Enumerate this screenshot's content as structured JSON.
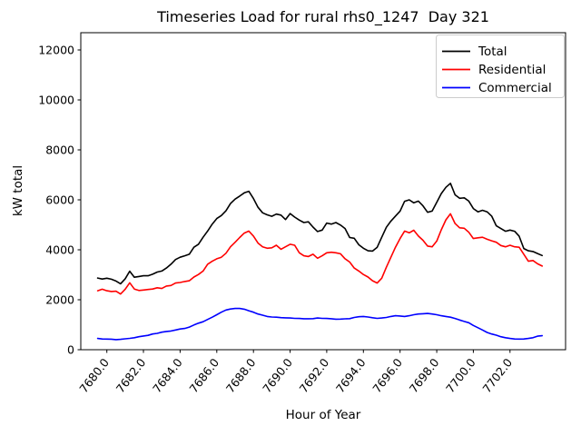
{
  "chart_data": {
    "type": "line",
    "title": "Timeseries Load for rural rhs0_1247  Day 321",
    "xlabel": "Hour of Year",
    "ylabel": "kW total",
    "xlim": [
      7678.58,
      7705.03
    ],
    "ylim": [
      0,
      12690
    ],
    "xticks": [
      7680,
      7682,
      7684,
      7686,
      7688,
      7690,
      7692,
      7694,
      7696,
      7698,
      7700,
      7702
    ],
    "xtick_labels": [
      "7680.0",
      "7682.0",
      "7684.0",
      "7686.0",
      "7688.0",
      "7690.0",
      "7692.0",
      "7694.0",
      "7696.0",
      "7698.0",
      "7700.0",
      "7702.0"
    ],
    "yticks": [
      0,
      2000,
      4000,
      6000,
      8000,
      10000,
      12000
    ],
    "ytick_labels": [
      "0",
      "2000",
      "4000",
      "6000",
      "8000",
      "10000",
      "12000"
    ],
    "grid": false,
    "legend_position": "upper right",
    "x": [
      7679.5,
      7679.75,
      7680.0,
      7680.25,
      7680.5,
      7680.75,
      7681.0,
      7681.25,
      7681.5,
      7681.75,
      7682.0,
      7682.25,
      7682.5,
      7682.75,
      7683.0,
      7683.25,
      7683.5,
      7683.75,
      7684.0,
      7684.25,
      7684.5,
      7684.75,
      7685.0,
      7685.25,
      7685.5,
      7685.75,
      7686.0,
      7686.25,
      7686.5,
      7686.75,
      7687.0,
      7687.25,
      7687.5,
      7687.75,
      7688.0,
      7688.25,
      7688.5,
      7688.75,
      7689.0,
      7689.25,
      7689.5,
      7689.75,
      7690.0,
      7690.25,
      7690.5,
      7690.75,
      7691.0,
      7691.25,
      7691.5,
      7691.75,
      7692.0,
      7692.25,
      7692.5,
      7692.75,
      7693.0,
      7693.25,
      7693.5,
      7693.75,
      7694.0,
      7694.25,
      7694.5,
      7694.75,
      7695.0,
      7695.25,
      7695.5,
      7695.75,
      7696.0,
      7696.25,
      7696.5,
      7696.75,
      7697.0,
      7697.25,
      7697.5,
      7697.75,
      7698.0,
      7698.25,
      7698.5,
      7698.75,
      7699.0,
      7699.25,
      7699.5,
      7699.75,
      7700.0,
      7700.25,
      7700.5,
      7700.75,
      7701.0,
      7701.25,
      7701.5,
      7701.75,
      7702.0,
      7702.25,
      7702.5,
      7702.75,
      7703.0,
      7703.25,
      7703.5,
      7703.75
    ],
    "series": [
      {
        "name": "Total",
        "color": "#000000",
        "values": [
          2870,
          2830,
          2860,
          2820,
          2750,
          2640,
          2840,
          3140,
          2900,
          2930,
          2960,
          2960,
          3020,
          3110,
          3150,
          3270,
          3420,
          3610,
          3700,
          3760,
          3820,
          4100,
          4220,
          4500,
          4750,
          5030,
          5250,
          5370,
          5560,
          5850,
          6030,
          6150,
          6280,
          6340,
          6050,
          5700,
          5480,
          5400,
          5340,
          5430,
          5390,
          5210,
          5450,
          5310,
          5190,
          5090,
          5120,
          4910,
          4730,
          4790,
          5070,
          5030,
          5090,
          4990,
          4850,
          4490,
          4460,
          4200,
          4060,
          3960,
          3950,
          4100,
          4500,
          4900,
          5150,
          5350,
          5550,
          5940,
          6000,
          5880,
          5950,
          5760,
          5500,
          5550,
          5900,
          6250,
          6500,
          6660,
          6200,
          6060,
          6080,
          5950,
          5650,
          5520,
          5580,
          5520,
          5350,
          4960,
          4850,
          4740,
          4790,
          4740,
          4540,
          4050,
          3960,
          3930,
          3850,
          3770
        ]
      },
      {
        "name": "Residential",
        "color": "#ff0000",
        "values": [
          2360,
          2420,
          2360,
          2330,
          2340,
          2230,
          2420,
          2680,
          2430,
          2370,
          2390,
          2410,
          2430,
          2480,
          2450,
          2550,
          2570,
          2670,
          2690,
          2730,
          2760,
          2910,
          3010,
          3150,
          3420,
          3540,
          3640,
          3700,
          3860,
          4120,
          4300,
          4490,
          4670,
          4750,
          4550,
          4270,
          4120,
          4060,
          4080,
          4180,
          4020,
          4120,
          4220,
          4180,
          3880,
          3760,
          3730,
          3820,
          3660,
          3760,
          3880,
          3900,
          3880,
          3840,
          3640,
          3510,
          3270,
          3150,
          3010,
          2910,
          2760,
          2670,
          2860,
          3300,
          3700,
          4100,
          4450,
          4750,
          4680,
          4780,
          4550,
          4380,
          4150,
          4120,
          4350,
          4800,
          5200,
          5440,
          5050,
          4880,
          4860,
          4700,
          4450,
          4480,
          4500,
          4420,
          4360,
          4300,
          4170,
          4120,
          4180,
          4120,
          4100,
          3820,
          3540,
          3570,
          3440,
          3350
        ]
      },
      {
        "name": "Commercial",
        "color": "#0000ff",
        "values": [
          450,
          430,
          425,
          420,
          405,
          415,
          435,
          455,
          480,
          520,
          550,
          575,
          630,
          655,
          700,
          730,
          750,
          790,
          830,
          850,
          905,
          990,
          1060,
          1120,
          1210,
          1300,
          1400,
          1500,
          1590,
          1630,
          1650,
          1650,
          1620,
          1560,
          1500,
          1430,
          1380,
          1330,
          1310,
          1300,
          1285,
          1275,
          1270,
          1255,
          1250,
          1240,
          1240,
          1245,
          1270,
          1255,
          1250,
          1240,
          1220,
          1225,
          1235,
          1245,
          1290,
          1320,
          1330,
          1310,
          1280,
          1255,
          1270,
          1290,
          1330,
          1360,
          1350,
          1330,
          1360,
          1400,
          1430,
          1440,
          1450,
          1430,
          1400,
          1360,
          1330,
          1300,
          1250,
          1190,
          1130,
          1080,
          970,
          880,
          790,
          690,
          630,
          580,
          520,
          480,
          450,
          430,
          425,
          430,
          450,
          480,
          540,
          560
        ]
      }
    ]
  }
}
